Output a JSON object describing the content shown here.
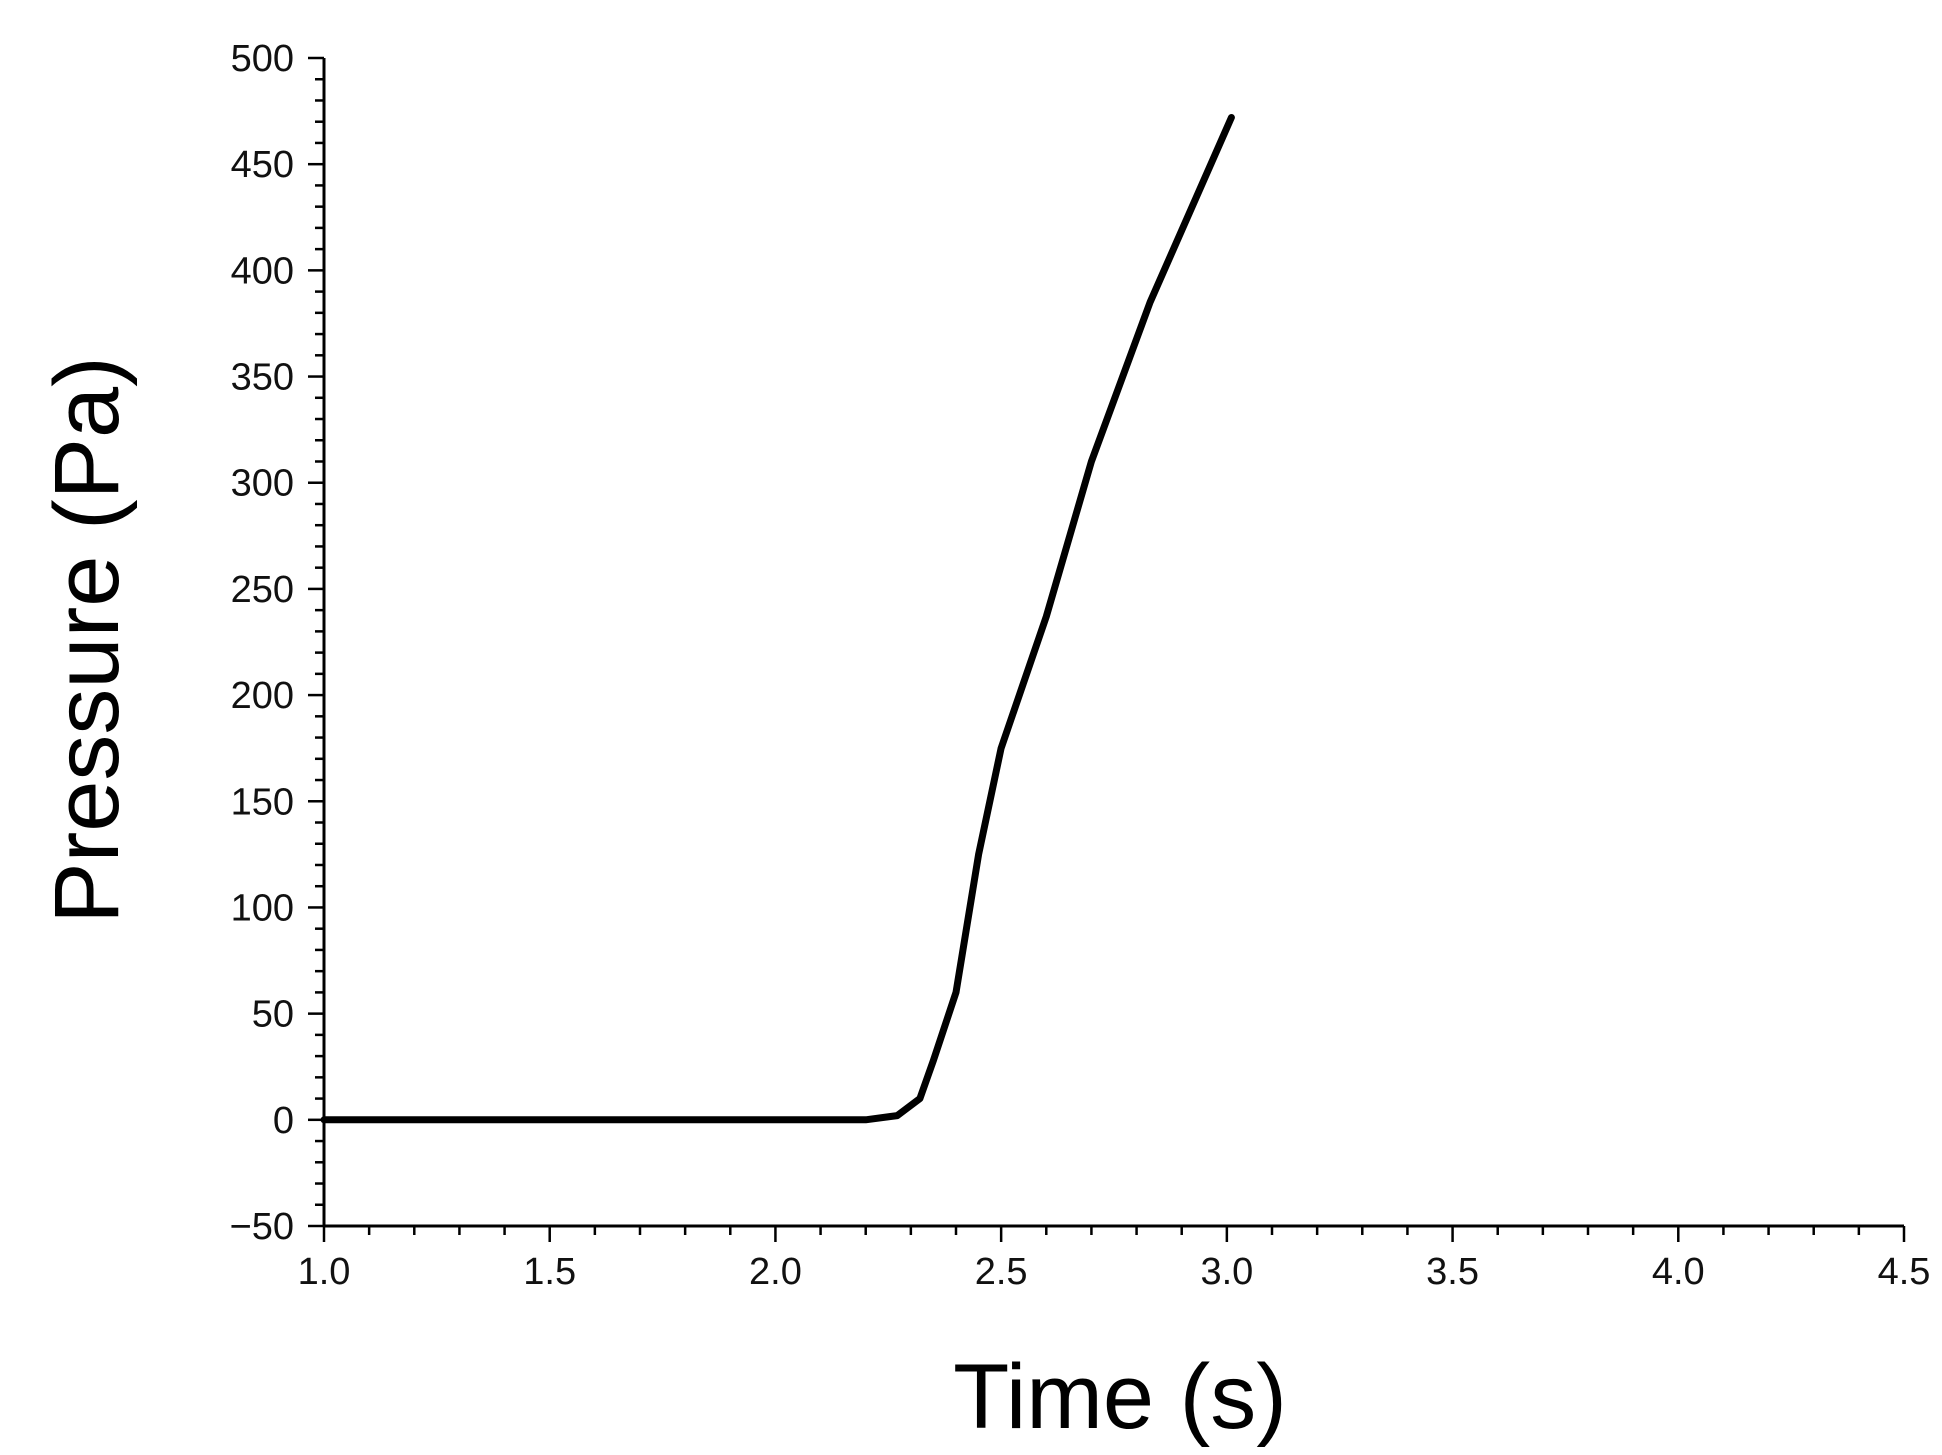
{
  "chart_data": {
    "type": "line",
    "title": "",
    "xlabel": "Time (s)",
    "ylabel": "Pressure (Pa)",
    "xlim": [
      1.0,
      4.5
    ],
    "ylim": [
      -50,
      500
    ],
    "x_ticks": [
      1.0,
      1.5,
      2.0,
      2.5,
      3.0,
      3.5,
      4.0,
      4.5
    ],
    "x_tick_labels": [
      "1.0",
      "1.5",
      "2.0",
      "2.5",
      "3.0",
      "3.5",
      "4.0",
      "4.5"
    ],
    "x_minor_step": 0.1,
    "y_ticks": [
      -50,
      0,
      50,
      100,
      150,
      200,
      250,
      300,
      350,
      400,
      450,
      500
    ],
    "y_tick_labels": [
      "−50",
      "0",
      "50",
      "100",
      "150",
      "200",
      "250",
      "300",
      "350",
      "400",
      "450",
      "500"
    ],
    "y_minor_step": 10,
    "grid": false,
    "legend": "none",
    "line_color": "#000000",
    "series": [
      {
        "x": [
          1.0,
          1.5,
          2.0,
          2.2,
          2.27,
          2.32,
          2.35,
          2.4,
          2.45,
          2.5,
          2.6,
          2.7,
          2.83,
          3.01
        ],
        "y": [
          0,
          0,
          0,
          0,
          2,
          10,
          28,
          60,
          125,
          175,
          237,
          310,
          385,
          472
        ]
      }
    ]
  }
}
